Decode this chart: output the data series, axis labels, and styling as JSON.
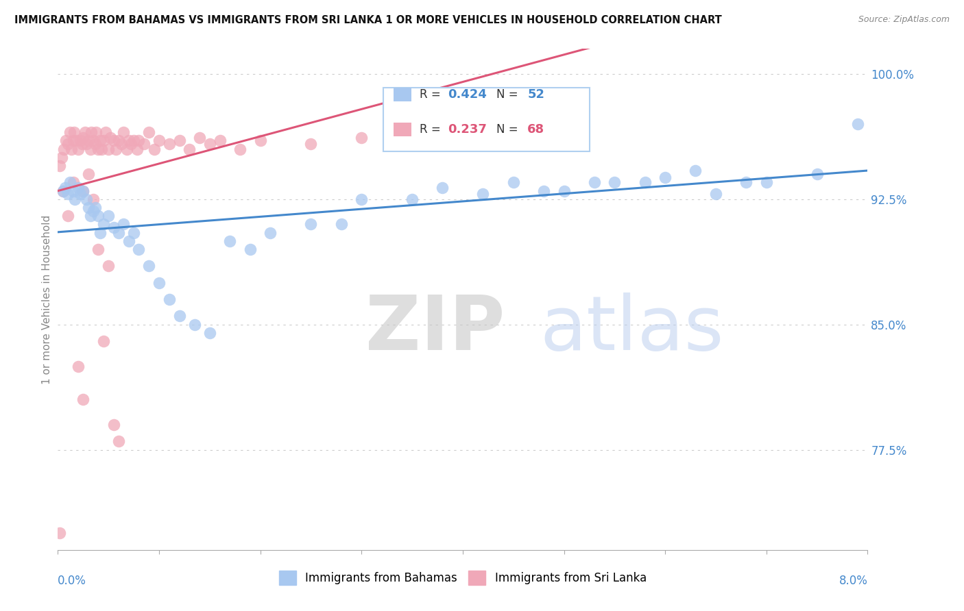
{
  "title": "IMMIGRANTS FROM BAHAMAS VS IMMIGRANTS FROM SRI LANKA 1 OR MORE VEHICLES IN HOUSEHOLD CORRELATION CHART",
  "source": "Source: ZipAtlas.com",
  "ylabel": "1 or more Vehicles in Household",
  "ytick_vals": [
    77.5,
    85.0,
    92.5,
    100.0
  ],
  "ytick_labels": [
    "77.5%",
    "85.0%",
    "92.5%",
    "100.0%"
  ],
  "xmin": 0.0,
  "xmax": 8.0,
  "ymin": 71.5,
  "ymax": 101.5,
  "bahamas_R": 0.424,
  "bahamas_N": 52,
  "srilanka_R": 0.237,
  "srilanka_N": 68,
  "bahamas_color": "#a8c8f0",
  "srilanka_color": "#f0a8b8",
  "bahamas_line_color": "#4488cc",
  "srilanka_line_color": "#dd5577",
  "legend_label_bahamas": "Immigrants from Bahamas",
  "legend_label_srilanka": "Immigrants from Sri Lanka",
  "watermark_zip": "ZIP",
  "watermark_atlas": "atlas",
  "bahamas_x": [
    0.05,
    0.07,
    0.1,
    0.12,
    0.15,
    0.17,
    0.2,
    0.22,
    0.25,
    0.28,
    0.3,
    0.32,
    0.35,
    0.37,
    0.4,
    0.42,
    0.45,
    0.5,
    0.55,
    0.6,
    0.65,
    0.7,
    0.75,
    0.8,
    0.9,
    1.0,
    1.1,
    1.2,
    1.35,
    1.5,
    1.7,
    1.9,
    2.1,
    2.5,
    3.0,
    3.5,
    4.5,
    5.0,
    5.5,
    6.0,
    6.5,
    7.0,
    7.5,
    3.8,
    4.2,
    4.8,
    5.3,
    5.8,
    6.3,
    6.8,
    7.9,
    2.8
  ],
  "bahamas_y": [
    93.0,
    93.2,
    92.8,
    93.5,
    93.0,
    92.5,
    93.2,
    92.8,
    93.0,
    92.5,
    92.0,
    91.5,
    91.8,
    92.0,
    91.5,
    90.5,
    91.0,
    91.5,
    90.8,
    90.5,
    91.0,
    90.0,
    90.5,
    89.5,
    88.5,
    87.5,
    86.5,
    85.5,
    85.0,
    84.5,
    90.0,
    89.5,
    90.5,
    91.0,
    92.5,
    92.5,
    93.5,
    93.0,
    93.5,
    93.8,
    92.8,
    93.5,
    94.0,
    93.2,
    92.8,
    93.0,
    93.5,
    93.5,
    94.2,
    93.5,
    97.0,
    91.0
  ],
  "srilanka_x": [
    0.02,
    0.04,
    0.06,
    0.08,
    0.1,
    0.12,
    0.13,
    0.15,
    0.16,
    0.18,
    0.2,
    0.22,
    0.24,
    0.25,
    0.27,
    0.28,
    0.3,
    0.32,
    0.33,
    0.35,
    0.37,
    0.38,
    0.4,
    0.42,
    0.43,
    0.45,
    0.47,
    0.5,
    0.52,
    0.55,
    0.57,
    0.6,
    0.63,
    0.65,
    0.68,
    0.7,
    0.72,
    0.75,
    0.78,
    0.8,
    0.85,
    0.9,
    0.95,
    1.0,
    1.1,
    1.2,
    1.3,
    1.4,
    1.5,
    1.6,
    1.8,
    2.0,
    2.5,
    3.0,
    0.05,
    0.1,
    0.15,
    0.25,
    0.3,
    0.4,
    0.5,
    0.35,
    0.45,
    0.2,
    0.25,
    0.55,
    0.6,
    0.02
  ],
  "srilanka_y": [
    94.5,
    95.0,
    95.5,
    96.0,
    95.8,
    96.5,
    95.5,
    96.0,
    96.5,
    96.0,
    95.5,
    96.0,
    95.8,
    96.2,
    96.5,
    95.8,
    96.0,
    95.5,
    96.5,
    96.0,
    95.8,
    96.5,
    95.5,
    96.0,
    95.5,
    96.0,
    96.5,
    95.5,
    96.2,
    96.0,
    95.5,
    96.0,
    95.8,
    96.5,
    95.5,
    96.0,
    95.8,
    96.0,
    95.5,
    96.0,
    95.8,
    96.5,
    95.5,
    96.0,
    95.8,
    96.0,
    95.5,
    96.2,
    95.8,
    96.0,
    95.5,
    96.0,
    95.8,
    96.2,
    93.0,
    91.5,
    93.5,
    93.0,
    94.0,
    89.5,
    88.5,
    92.5,
    84.0,
    82.5,
    80.5,
    79.0,
    78.0,
    72.5
  ]
}
